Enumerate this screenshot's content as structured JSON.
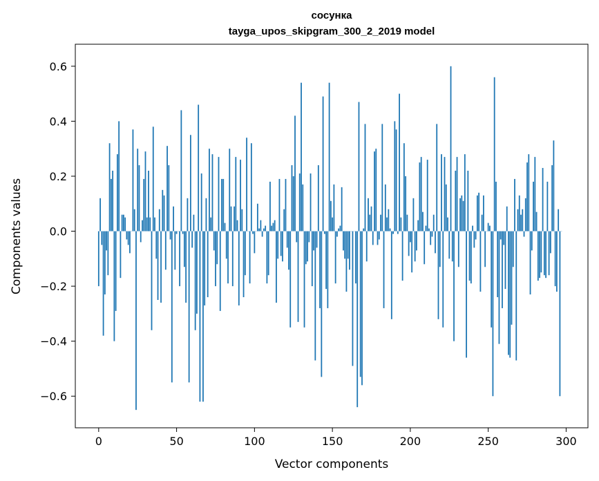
{
  "chart_data": {
    "type": "bar",
    "title": "сосунка",
    "subtitle": "tayga_upos_skipgram_300_2_2019 model",
    "xlabel": "Vector components",
    "ylabel": "Components values",
    "xlim": [
      -15,
      314
    ],
    "ylim": [
      -0.715,
      0.68
    ],
    "xticks": [
      0,
      50,
      100,
      150,
      200,
      250,
      300
    ],
    "yticks": [
      -0.6,
      -0.4,
      -0.2,
      0.0,
      0.2,
      0.4,
      0.6
    ],
    "ytick_labels": [
      "−0.6",
      "−0.4",
      "−0.2",
      "0.0",
      "0.2",
      "0.4",
      "0.6"
    ],
    "bar_color": "#1f77b4",
    "values": [
      -0.2,
      0.12,
      -0.05,
      -0.38,
      -0.23,
      -0.07,
      -0.16,
      0.32,
      0.19,
      0.22,
      -0.4,
      -0.29,
      0.28,
      0.4,
      -0.17,
      0.06,
      0.06,
      0.05,
      -0.03,
      -0.05,
      -0.08,
      0.0,
      0.37,
      0.08,
      -0.65,
      0.3,
      0.24,
      -0.04,
      0.04,
      0.19,
      0.29,
      0.05,
      0.22,
      0.05,
      -0.36,
      0.38,
      0.05,
      -0.1,
      -0.25,
      0.08,
      -0.26,
      0.15,
      0.13,
      -0.14,
      0.31,
      0.24,
      -0.03,
      -0.55,
      0.09,
      -0.14,
      -0.01,
      0.0,
      -0.2,
      0.44,
      -0.01,
      -0.13,
      -0.26,
      0.12,
      -0.55,
      0.35,
      -0.06,
      0.06,
      -0.36,
      -0.3,
      0.46,
      -0.62,
      0.21,
      -0.62,
      -0.27,
      0.12,
      -0.24,
      0.3,
      0.05,
      0.28,
      -0.07,
      -0.2,
      -0.12,
      0.27,
      -0.29,
      0.19,
      0.19,
      0.03,
      -0.1,
      -0.19,
      0.3,
      0.09,
      -0.2,
      0.09,
      0.27,
      0.04,
      -0.27,
      0.26,
      0.08,
      -0.24,
      -0.16,
      0.34,
      0.0,
      -0.19,
      0.32,
      -0.01,
      -0.08,
      0.0,
      0.1,
      0.01,
      0.04,
      -0.02,
      0.01,
      0.02,
      -0.19,
      -0.16,
      0.18,
      0.02,
      0.03,
      0.04,
      -0.26,
      -0.1,
      0.19,
      -0.09,
      -0.11,
      0.08,
      0.19,
      -0.06,
      -0.14,
      -0.35,
      0.24,
      0.2,
      0.42,
      -0.04,
      -0.33,
      0.21,
      0.54,
      0.17,
      -0.35,
      -0.12,
      -0.11,
      -0.04,
      0.21,
      -0.2,
      -0.07,
      -0.47,
      -0.06,
      0.24,
      -0.28,
      -0.53,
      0.49,
      -0.01,
      -0.21,
      -0.28,
      0.54,
      0.11,
      0.05,
      0.17,
      -0.19,
      -0.02,
      0.01,
      0.02,
      0.16,
      -0.07,
      -0.1,
      -0.22,
      -0.1,
      -0.14,
      0.0,
      -0.49,
      0.0,
      -0.19,
      -0.64,
      0.47,
      -0.53,
      -0.56,
      0.01,
      0.39,
      -0.11,
      0.12,
      0.06,
      0.09,
      -0.05,
      0.29,
      0.3,
      -0.05,
      -0.03,
      0.06,
      0.39,
      -0.28,
      0.17,
      0.05,
      0.08,
      0.01,
      -0.32,
      -0.01,
      0.4,
      0.37,
      -0.01,
      0.5,
      0.05,
      -0.18,
      0.32,
      0.2,
      0.06,
      -0.09,
      -0.04,
      -0.15,
      0.12,
      -0.11,
      -0.07,
      0.04,
      0.25,
      0.27,
      0.07,
      -0.12,
      0.02,
      0.26,
      0.01,
      -0.05,
      -0.02,
      0.06,
      -0.08,
      0.39,
      -0.32,
      -0.13,
      0.28,
      -0.35,
      0.27,
      0.17,
      0.05,
      -0.1,
      0.6,
      -0.11,
      -0.4,
      0.22,
      0.27,
      -0.13,
      0.12,
      0.13,
      0.11,
      0.28,
      -0.46,
      0.22,
      -0.18,
      -0.19,
      0.02,
      -0.06,
      -0.03,
      0.13,
      0.14,
      -0.22,
      0.06,
      0.13,
      -0.13,
      0.0,
      0.03,
      0.02,
      -0.35,
      -0.6,
      0.56,
      0.18,
      -0.24,
      -0.41,
      -0.03,
      -0.28,
      -0.05,
      -0.21,
      0.09,
      -0.45,
      -0.46,
      -0.34,
      -0.13,
      0.19,
      -0.47,
      0.08,
      0.13,
      0.06,
      0.08,
      -0.02,
      0.12,
      0.25,
      0.28,
      -0.23,
      -0.07,
      0.18,
      0.27,
      0.07,
      -0.18,
      -0.17,
      -0.15,
      0.23,
      -0.16,
      -0.17,
      0.18,
      -0.16,
      -0.08,
      0.24,
      0.33,
      -0.2,
      -0.22,
      0.08,
      -0.6,
      0.0
    ]
  }
}
